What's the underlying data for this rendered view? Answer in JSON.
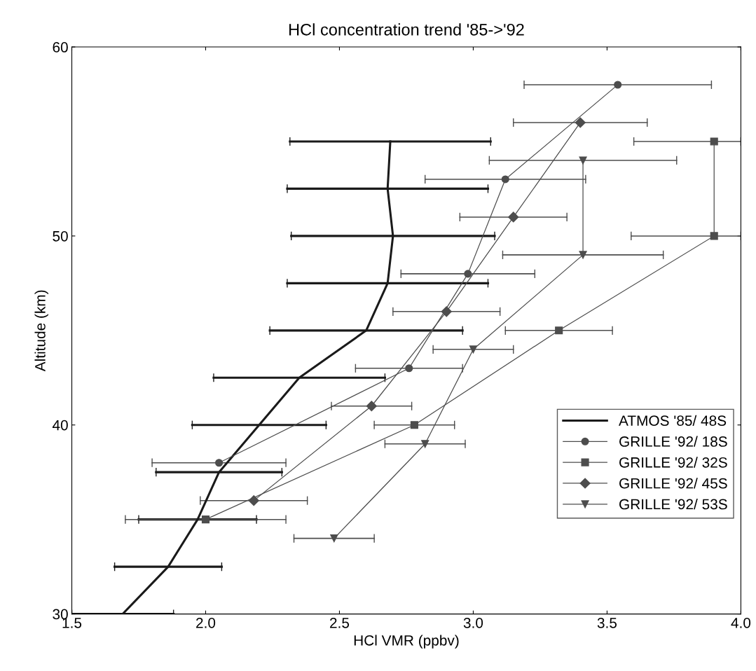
{
  "chart_data": {
    "type": "line",
    "title": "HCl concentration trend '85->'92",
    "xlabel": "HCl VMR (ppbv)",
    "ylabel": "Altitude (km)",
    "xlim": [
      1.5,
      4.0
    ],
    "xticks": [
      {
        "value": 1.5,
        "label": "1.5"
      },
      {
        "value": 2.0,
        "label": "2.0"
      },
      {
        "value": 2.5,
        "label": "2.5"
      },
      {
        "value": 3.0,
        "label": "3.0"
      },
      {
        "value": 3.5,
        "label": "3.5"
      },
      {
        "value": 4.0,
        "label": "4.0"
      }
    ],
    "ylim": [
      30,
      60
    ],
    "yticks": [
      30,
      40,
      50,
      60
    ],
    "grid": false,
    "legend": "center right",
    "series": [
      {
        "name": "ATMOS '85/ 48S",
        "color": "#1a1a1a",
        "marker": "none",
        "x": [
          1.69,
          1.86,
          1.97,
          2.05,
          2.2,
          2.35,
          2.6,
          2.68,
          2.7,
          2.68,
          2.69
        ],
        "values": [
          30,
          32.5,
          35,
          37.5,
          40,
          42.5,
          45,
          47.5,
          50,
          52.5,
          55
        ],
        "xerrors": [
          0.19,
          0.2,
          0.22,
          0.235,
          0.25,
          0.32,
          0.36,
          0.375,
          0.38,
          0.375,
          0.375
        ]
      },
      {
        "name": "GRILLE '92/ 18S",
        "color": "#4d4d4d",
        "marker": "circle",
        "x": [
          2.05,
          2.76,
          2.98,
          3.12,
          3.54
        ],
        "values": [
          38,
          43,
          48,
          53,
          58
        ],
        "xerrors": [
          0.25,
          0.2,
          0.25,
          0.3,
          0.35
        ]
      },
      {
        "name": "GRILLE '92/ 32S",
        "color": "#4d4d4d",
        "marker": "square",
        "x": [
          2.0,
          2.78,
          3.32,
          3.9,
          3.9
        ],
        "values": [
          35,
          40,
          45,
          50,
          55
        ],
        "xerrors": [
          0.3,
          0.15,
          0.2,
          [
            3.59,
            4.0
          ],
          [
            3.6,
            4.0
          ]
        ]
      },
      {
        "name": "GRILLE '92/ 45S",
        "color": "#4d4d4d",
        "marker": "diamond",
        "x": [
          2.18,
          2.62,
          2.9,
          3.15,
          3.4
        ],
        "values": [
          36,
          41,
          46,
          51,
          56
        ],
        "xerrors": [
          0.2,
          0.15,
          0.2,
          0.2,
          0.25
        ]
      },
      {
        "name": "GRILLE '92/ 53S",
        "color": "#4d4d4d",
        "marker": "triangle",
        "x": [
          2.48,
          2.82,
          3.0,
          3.41,
          3.41
        ],
        "values": [
          34,
          39,
          44,
          49,
          54
        ],
        "xerrors": [
          0.15,
          0.15,
          0.15,
          0.3,
          0.35
        ]
      }
    ]
  }
}
